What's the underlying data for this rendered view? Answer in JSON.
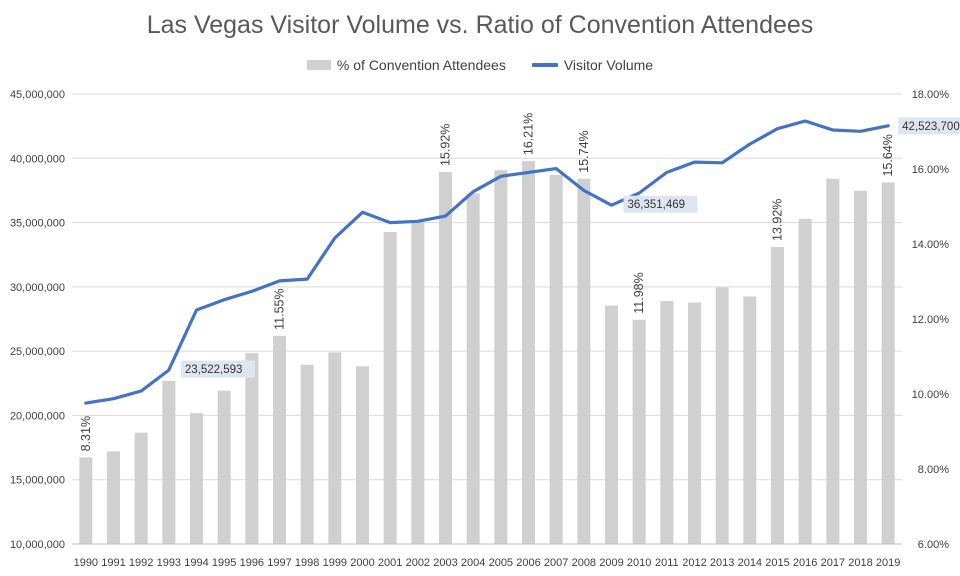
{
  "chart_data": {
    "type": "bar",
    "title": "Las Vegas Visitor Volume vs. Ratio of Convention Attendees",
    "legend": [
      "% of Convention Attendees",
      "Visitor Volume"
    ],
    "legend_position": "top",
    "grid": true,
    "categories": [
      "1990",
      "1991",
      "1992",
      "1993",
      "1994",
      "1995",
      "1996",
      "1997",
      "1998",
      "1999",
      "2000",
      "2001",
      "2002",
      "2003",
      "2004",
      "2005",
      "2006",
      "2007",
      "2008",
      "2009",
      "2010",
      "2011",
      "2012",
      "2013",
      "2014",
      "2015",
      "2016",
      "2017",
      "2018",
      "2019"
    ],
    "series": [
      {
        "name": "% of Convention Attendees",
        "type": "bar",
        "axis": "right",
        "color": "#d0d0d0",
        "values": [
          8.31,
          8.47,
          8.97,
          10.35,
          9.49,
          10.09,
          11.09,
          11.55,
          10.78,
          11.11,
          10.74,
          14.32,
          14.58,
          15.92,
          15.35,
          15.97,
          16.21,
          15.84,
          15.74,
          12.36,
          11.98,
          12.48,
          12.44,
          12.84,
          12.6,
          13.92,
          14.67,
          15.74,
          15.42,
          15.64
        ]
      },
      {
        "name": "Visitor Volume",
        "type": "line",
        "axis": "left",
        "color": "#4472c4",
        "values": [
          20960000,
          21300000,
          21900000,
          23522593,
          28200000,
          29000000,
          29650000,
          30460000,
          30600000,
          33800000,
          35800000,
          35000000,
          35100000,
          35500000,
          37400000,
          38600000,
          38900000,
          39200000,
          37500000,
          36351469,
          37300000,
          38900000,
          39700000,
          39650000,
          41100000,
          42300000,
          42900000,
          42200000,
          42100000,
          42523700
        ]
      }
    ],
    "bar_labels": {
      "1990": "8.31%",
      "1997": "11.55%",
      "2003": "15.92%",
      "2006": "16.21%",
      "2008": "15.74%",
      "2010": "11.98%",
      "2015": "13.92%",
      "2019": "15.64%"
    },
    "line_callouts": [
      {
        "category": "1993",
        "text": "23,522,593"
      },
      {
        "category": "2009",
        "text": "36,351,469"
      },
      {
        "category": "2019",
        "text": "42,523,700"
      }
    ],
    "y_left": {
      "min": 10000000,
      "max": 45000000,
      "step": 5000000,
      "tick_labels": [
        "10,000,000",
        "15,000,000",
        "20,000,000",
        "25,000,000",
        "30,000,000",
        "35,000,000",
        "40,000,000",
        "45,000,000"
      ]
    },
    "y_right": {
      "min": 6,
      "max": 18,
      "step": 2,
      "tick_labels": [
        "6.00%",
        "8.00%",
        "10.00%",
        "12.00%",
        "14.00%",
        "16.00%",
        "18.00%"
      ]
    }
  }
}
